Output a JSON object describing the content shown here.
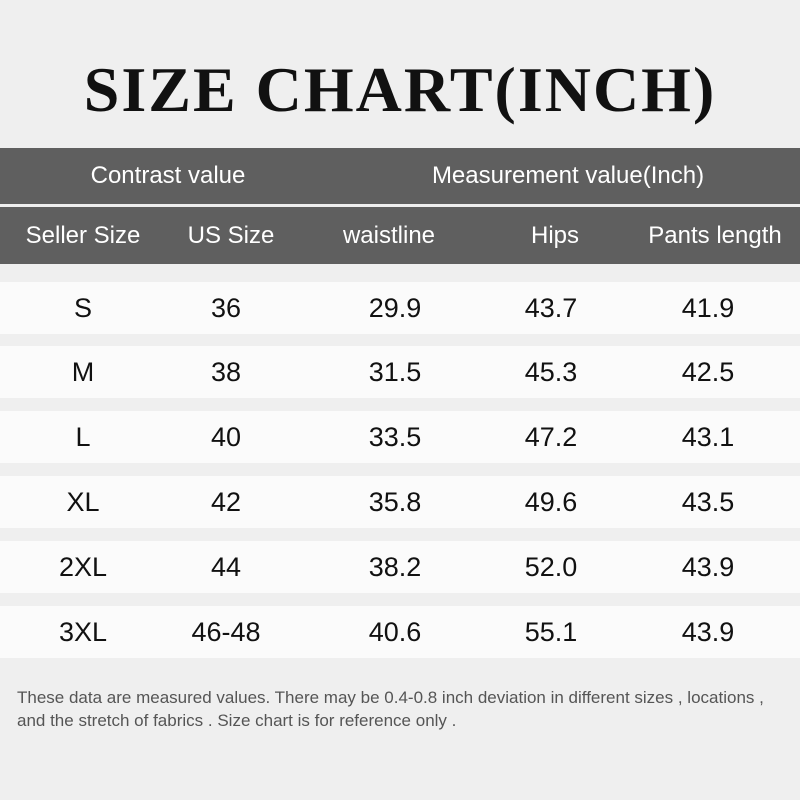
{
  "title": "SIZE CHART(INCH)",
  "header_groups": {
    "contrast": "Contrast value",
    "measurement": "Measurement value(Inch)"
  },
  "columns": [
    "Seller Size",
    "US Size",
    "waistline",
    "Hips",
    "Pants length"
  ],
  "rows": [
    [
      "S",
      "36",
      "29.9",
      "43.7",
      "41.9"
    ],
    [
      "M",
      "38",
      "31.5",
      "45.3",
      "42.5"
    ],
    [
      "L",
      "40",
      "33.5",
      "47.2",
      "43.1"
    ],
    [
      "XL",
      "42",
      "35.8",
      "49.6",
      "43.5"
    ],
    [
      "2XL",
      "44",
      "38.2",
      "52.0",
      "43.9"
    ],
    [
      "3XL",
      "46-48",
      "40.6",
      "55.1",
      "43.9"
    ]
  ],
  "note": "These data are measured values. There may be 0.4-0.8 inch deviation in different sizes , locations , and the stretch of fabrics . Size chart is for reference only .",
  "colors": {
    "background": "#efefef",
    "header": "#5f5f5f",
    "row": "#fbfbfb"
  }
}
